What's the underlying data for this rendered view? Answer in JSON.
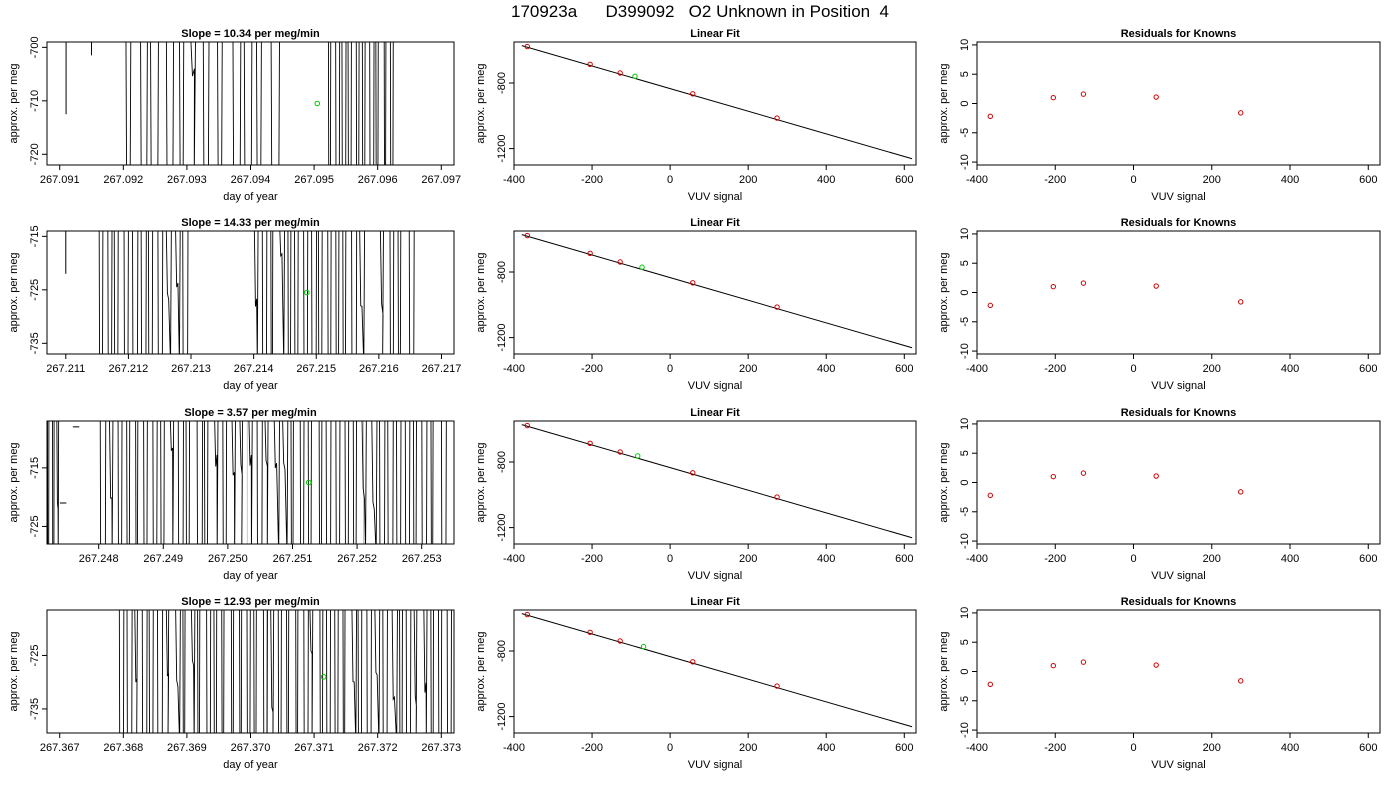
{
  "title": "170923a      D399092   O2 Unknown in Position  4",
  "colors": {
    "line": "#000000",
    "unknown": "#00cc00",
    "known": "#cc0000",
    "fitline": "#000000",
    "guide": "#bbbbbb"
  },
  "chart_data": [
    {
      "type": "line",
      "title": "Slope =  10.34  per meg/min",
      "xlabel": "day of year",
      "ylabel": "approx. per meg",
      "xlim": [
        267.0908,
        267.0972
      ],
      "ylim": [
        -722,
        -699
      ],
      "x_ticks": [
        "267.091",
        "267.092",
        "267.093",
        "267.094",
        "267.095",
        "267.096",
        "267.097"
      ],
      "y_ticks": [
        "-700",
        "-710",
        "-720"
      ],
      "x_tick_values": [
        267.091,
        267.092,
        267.093,
        267.094,
        267.095,
        267.096,
        267.097
      ],
      "y_tick_values": [
        -700,
        -710,
        -720
      ],
      "trace": {
        "x_start": 267.0908,
        "x_end": 267.0972,
        "flat_segments": [
          [
            267.0908,
            267.0911,
            -699
          ],
          [
            267.0911,
            267.0911,
            -712.5
          ],
          [
            267.0912,
            267.0914,
            -699
          ],
          [
            267.0915,
            267.0915,
            -701.5
          ],
          [
            267.0915,
            267.092,
            -699
          ],
          [
            267.0945,
            267.0952,
            -699
          ],
          [
            267.0963,
            267.0972,
            -699
          ]
        ],
        "busy_ranges": [
          [
            267.092,
            267.0945,
            12
          ],
          [
            267.0952,
            267.0963,
            10
          ]
        ]
      },
      "marker": {
        "x": 267.09505,
        "y": -710.5
      }
    },
    {
      "type": "scatter",
      "title": "Linear Fit",
      "xlabel": "VUV signal",
      "ylabel": "approx. per meg",
      "xlim": [
        -400,
        630
      ],
      "ylim": [
        -1300,
        -550
      ],
      "x_ticks": [
        "-400",
        "-200",
        "0",
        "200",
        "400",
        "600"
      ],
      "y_ticks": [
        "-800",
        "-1200"
      ],
      "x_tick_values": [
        -400,
        -200,
        0,
        200,
        400,
        600
      ],
      "y_tick_values": [
        -800,
        -1200
      ],
      "fit_line": {
        "x": [
          -380,
          620
        ],
        "y": [
          -572,
          -1262
        ]
      },
      "knowns": {
        "x": [
          -366,
          -205,
          -128,
          58,
          274
        ],
        "y": [
          -578,
          -686,
          -739,
          -866,
          -1014
        ]
      },
      "unknown": {
        "x": [
          -90
        ],
        "y": [
          -759
        ]
      }
    },
    {
      "type": "scatter",
      "title": "Residuals for Knowns",
      "xlabel": "VUV signal",
      "ylabel": "approx. per meg",
      "xlim": [
        -400,
        630
      ],
      "ylim": [
        -10.5,
        10.5
      ],
      "x_ticks": [
        "-400",
        "-200",
        "0",
        "200",
        "400",
        "600"
      ],
      "y_ticks": [
        "10",
        "5",
        "0",
        "-5",
        "-10"
      ],
      "x_tick_values": [
        -400,
        -200,
        0,
        200,
        400,
        600
      ],
      "y_tick_values": [
        10,
        5,
        0,
        -5,
        -10
      ],
      "knowns": {
        "x": [
          -366,
          -205,
          -128,
          58,
          274
        ],
        "y": [
          -2.2,
          1.0,
          1.6,
          1.1,
          -1.6
        ]
      }
    },
    {
      "type": "line",
      "title": "Slope =  14.33  per meg/min",
      "xlabel": "day of year",
      "ylabel": "approx. per meg",
      "xlim": [
        267.2107,
        267.2172
      ],
      "ylim": [
        -737,
        -714
      ],
      "x_ticks": [
        "267.211",
        "267.212",
        "267.213",
        "267.214",
        "267.215",
        "267.216",
        "267.217"
      ],
      "y_ticks": [
        "-715",
        "-725",
        "-735"
      ],
      "x_tick_values": [
        267.211,
        267.212,
        267.213,
        267.214,
        267.215,
        267.216,
        267.217
      ],
      "y_tick_values": [
        -715,
        -725,
        -735
      ],
      "trace": {
        "x_start": 267.2107,
        "x_end": 267.2172,
        "flat_segments": [
          [
            267.2107,
            267.211,
            -714
          ],
          [
            267.211,
            267.211,
            -722
          ],
          [
            267.211,
            267.2115,
            -714
          ],
          [
            267.213,
            267.214,
            -714
          ],
          [
            267.2158,
            267.216,
            -714
          ],
          [
            267.2166,
            267.2172,
            -714
          ]
        ],
        "busy_ranges": [
          [
            267.2115,
            267.213,
            11
          ],
          [
            267.214,
            267.2158,
            14
          ],
          [
            267.216,
            267.2166,
            4
          ]
        ]
      },
      "marker": {
        "x": 267.21485,
        "y": -725.5
      }
    },
    {
      "type": "scatter",
      "title": "Linear Fit",
      "xlabel": "VUV signal",
      "ylabel": "approx. per meg",
      "xlim": [
        -400,
        630
      ],
      "ylim": [
        -1300,
        -550
      ],
      "x_ticks": [
        "-400",
        "-200",
        "0",
        "200",
        "400",
        "600"
      ],
      "y_ticks": [
        "-800",
        "-1200"
      ],
      "x_tick_values": [
        -400,
        -200,
        0,
        200,
        400,
        600
      ],
      "y_tick_values": [
        -800,
        -1200
      ],
      "fit_line": {
        "x": [
          -380,
          620
        ],
        "y": [
          -572,
          -1262
        ]
      },
      "knowns": {
        "x": [
          -366,
          -205,
          -128,
          58,
          274
        ],
        "y": [
          -578,
          -686,
          -739,
          -866,
          -1014
        ]
      },
      "unknown": {
        "x": [
          -72
        ],
        "y": [
          -771
        ]
      }
    },
    {
      "type": "scatter",
      "title": "Residuals for Knowns",
      "xlabel": "VUV signal",
      "ylabel": "approx. per meg",
      "xlim": [
        -400,
        630
      ],
      "ylim": [
        -10.5,
        10.5
      ],
      "x_ticks": [
        "-400",
        "-200",
        "0",
        "200",
        "400",
        "600"
      ],
      "y_ticks": [
        "10",
        "5",
        "0",
        "-5",
        "-10"
      ],
      "x_tick_values": [
        -400,
        -200,
        0,
        200,
        400,
        600
      ],
      "y_tick_values": [
        10,
        5,
        0,
        -5,
        -10
      ],
      "knowns": {
        "x": [
          -366,
          -205,
          -128,
          58,
          274
        ],
        "y": [
          -2.2,
          1.0,
          1.6,
          1.1,
          -1.6
        ]
      }
    },
    {
      "type": "line",
      "title": "Slope =  3.57  per meg/min",
      "xlabel": "day of year",
      "ylabel": "approx. per meg",
      "xlim": [
        267.2472,
        267.2535
      ],
      "ylim": [
        -728,
        -707
      ],
      "x_ticks": [
        "267.248",
        "267.249",
        "267.250",
        "267.251",
        "267.252",
        "267.253"
      ],
      "y_ticks": [
        "-715",
        "-725"
      ],
      "x_tick_values": [
        267.248,
        267.249,
        267.25,
        267.251,
        267.252,
        267.253
      ],
      "y_tick_values": [
        -715,
        -725
      ],
      "trace": {
        "x_start": 267.2472,
        "x_end": 267.2535,
        "flat_segments": [
          [
            267.2474,
            267.2475,
            -721
          ],
          [
            267.2476,
            267.2477,
            -708
          ]
        ],
        "busy_ranges": [
          [
            267.2472,
            267.2474,
            3
          ],
          [
            267.248,
            267.2534,
            40
          ]
        ]
      },
      "marker": {
        "x": 267.25125,
        "y": -717.5
      }
    },
    {
      "type": "scatter",
      "title": "Linear Fit",
      "xlabel": "VUV signal",
      "ylabel": "approx. per meg",
      "xlim": [
        -400,
        630
      ],
      "ylim": [
        -1300,
        -550
      ],
      "x_ticks": [
        "-400",
        "-200",
        "0",
        "200",
        "400",
        "600"
      ],
      "y_ticks": [
        "-800",
        "-1200"
      ],
      "x_tick_values": [
        -400,
        -200,
        0,
        200,
        400,
        600
      ],
      "y_tick_values": [
        -800,
        -1200
      ],
      "fit_line": {
        "x": [
          -380,
          620
        ],
        "y": [
          -572,
          -1262
        ]
      },
      "knowns": {
        "x": [
          -366,
          -205,
          -128,
          58,
          274
        ],
        "y": [
          -578,
          -686,
          -739,
          -866,
          -1014
        ]
      },
      "unknown": {
        "x": [
          -83
        ],
        "y": [
          -763
        ]
      }
    },
    {
      "type": "scatter",
      "title": "Residuals for Knowns",
      "xlabel": "VUV signal",
      "ylabel": "approx. per meg",
      "xlim": [
        -400,
        630
      ],
      "ylim": [
        -10.5,
        10.5
      ],
      "x_ticks": [
        "-400",
        "-200",
        "0",
        "200",
        "400",
        "600"
      ],
      "y_ticks": [
        "10",
        "5",
        "0",
        "-5",
        "-10"
      ],
      "x_tick_values": [
        -400,
        -200,
        0,
        200,
        400,
        600
      ],
      "y_tick_values": [
        10,
        5,
        0,
        -5,
        -10
      ],
      "knowns": {
        "x": [
          -366,
          -205,
          -128,
          58,
          274
        ],
        "y": [
          -2.2,
          1.0,
          1.6,
          1.1,
          -1.6
        ]
      }
    },
    {
      "type": "line",
      "title": "Slope =  12.93  per meg/min",
      "xlabel": "day of year",
      "ylabel": "approx. per meg",
      "xlim": [
        267.3668,
        267.3732
      ],
      "ylim": [
        -739.5,
        -716.5
      ],
      "x_ticks": [
        "267.367",
        "267.368",
        "267.369",
        "267.370",
        "267.371",
        "267.372",
        "267.373"
      ],
      "y_ticks": [
        "-725",
        "-735"
      ],
      "x_tick_values": [
        267.367,
        267.368,
        267.369,
        267.37,
        267.371,
        267.372,
        267.373
      ],
      "y_tick_values": [
        -725,
        -735
      ],
      "trace": {
        "x_start": 267.3668,
        "x_end": 267.3732,
        "flat_segments": [
          [
            267.3668,
            267.3679,
            -716.5
          ]
        ],
        "busy_ranges": [
          [
            267.3679,
            267.3732,
            42
          ]
        ]
      },
      "marker": {
        "x": 267.37115,
        "y": -729
      }
    },
    {
      "type": "scatter",
      "title": "Linear Fit",
      "xlabel": "VUV signal",
      "ylabel": "approx. per meg",
      "xlim": [
        -400,
        630
      ],
      "ylim": [
        -1300,
        -550
      ],
      "x_ticks": [
        "-400",
        "-200",
        "0",
        "200",
        "400",
        "600"
      ],
      "y_ticks": [
        "-800",
        "-1200"
      ],
      "x_tick_values": [
        -400,
        -200,
        0,
        200,
        400,
        600
      ],
      "y_tick_values": [
        -800,
        -1200
      ],
      "fit_line": {
        "x": [
          -380,
          620
        ],
        "y": [
          -572,
          -1262
        ]
      },
      "knowns": {
        "x": [
          -366,
          -205,
          -128,
          58,
          274
        ],
        "y": [
          -578,
          -686,
          -739,
          -866,
          -1014
        ]
      },
      "unknown": {
        "x": [
          -68
        ],
        "y": [
          -773
        ]
      }
    },
    {
      "type": "scatter",
      "title": "Residuals for Knowns",
      "xlabel": "VUV signal",
      "ylabel": "approx. per meg",
      "xlim": [
        -400,
        630
      ],
      "ylim": [
        -10.5,
        10.5
      ],
      "x_ticks": [
        "-400",
        "-200",
        "0",
        "200",
        "400",
        "600"
      ],
      "y_ticks": [
        "10",
        "5",
        "0",
        "-5",
        "-10"
      ],
      "x_tick_values": [
        -400,
        -200,
        0,
        200,
        400,
        600
      ],
      "y_tick_values": [
        10,
        5,
        0,
        -5,
        -10
      ],
      "knowns": {
        "x": [
          -366,
          -205,
          -128,
          58,
          274
        ],
        "y": [
          -2.2,
          1.0,
          1.6,
          1.1,
          -1.6
        ]
      }
    }
  ]
}
